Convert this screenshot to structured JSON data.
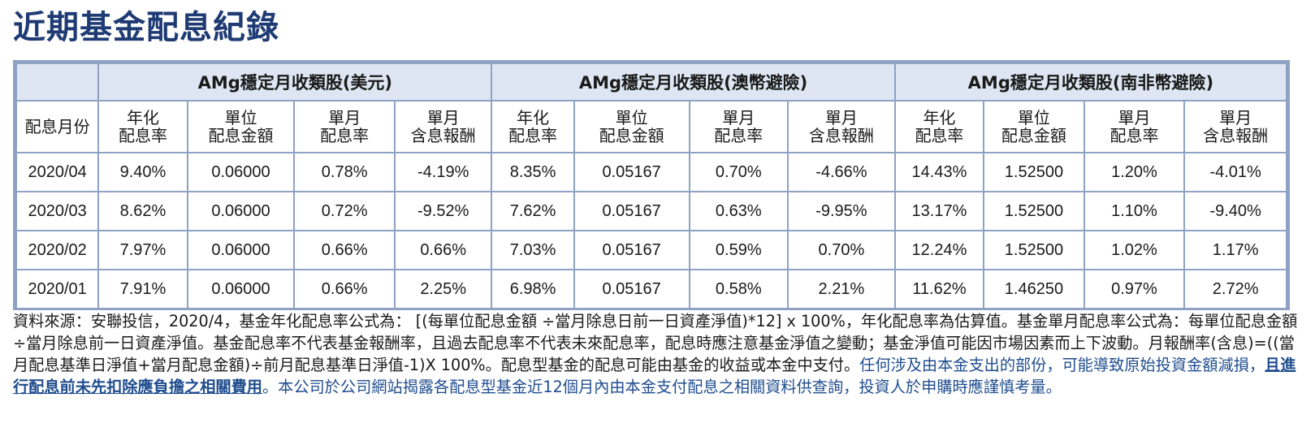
{
  "page": {
    "title": "近期基金配息紀錄"
  },
  "table": {
    "month_header": "配息月份",
    "groups": [
      {
        "name": "AMg穩定月收類股(美元)"
      },
      {
        "name": "AMg穩定月收類股(澳幣避險)"
      },
      {
        "name": "AMg穩定月收類股(南非幣避險)"
      }
    ],
    "column_headers": [
      {
        "line1": "年化",
        "line2": "配息率"
      },
      {
        "line1": "單位",
        "line2": "配息金額"
      },
      {
        "line1": "單月",
        "line2": "配息率"
      },
      {
        "line1": "單月",
        "line2": "含息報酬"
      }
    ],
    "rows": [
      {
        "month": "2020/04",
        "cells": [
          "9.40%",
          "0.06000",
          "0.78%",
          "-4.19%",
          "8.35%",
          "0.05167",
          "0.70%",
          "-4.66%",
          "14.43%",
          "1.52500",
          "1.20%",
          "-4.01%"
        ]
      },
      {
        "month": "2020/03",
        "cells": [
          "8.62%",
          "0.06000",
          "0.72%",
          "-9.52%",
          "7.62%",
          "0.05167",
          "0.63%",
          "-9.95%",
          "13.17%",
          "1.52500",
          "1.10%",
          "-9.40%"
        ]
      },
      {
        "month": "2020/02",
        "cells": [
          "7.97%",
          "0.06000",
          "0.66%",
          "0.66%",
          "7.03%",
          "0.05167",
          "0.59%",
          "0.70%",
          "12.24%",
          "1.52500",
          "1.02%",
          "1.17%"
        ]
      },
      {
        "month": "2020/01",
        "cells": [
          "7.91%",
          "0.06000",
          "0.66%",
          "2.25%",
          "6.98%",
          "0.05167",
          "0.58%",
          "2.21%",
          "11.62%",
          "1.46250",
          "0.97%",
          "2.72%"
        ]
      }
    ]
  },
  "footnote": {
    "part1": "資料來源：安聯投信，2020/4，基金年化配息率公式為： [(每單位配息金額 ÷當月除息日前一日資產淨值)*12] x 100%，年化配息率為估算值。基金單月配息率公式為：每單位配息金額÷當月除息前一日資產淨值。基金配息率不代表基金報酬率，且過去配息率不代表未來配息率，配息時應注意基金淨值之變動；基金淨值可能因市場因素而上下波動。月報酬率(含息)=((當月配息基準日淨值+當月配息金額)÷前月配息基準日淨值-1)X 100%。配息型基金的配息可能由基金的收益或本金中支付。",
    "part2": "任何涉及由本金支出的部份，可能導致原始投資金額減損，",
    "part3": "且進行配息前未先扣除應負擔之相關費用",
    "part4": "。本公司於公司網站揭露各配息型基金近12個月內由本金支付配息之相關資料供查詢，投資人於申購時應謹慎考量。"
  },
  "colors": {
    "title": "#1f3b73",
    "header_fill": "#dde6f2",
    "border": "#8ea2c4",
    "emphasis": "#1f4d8f"
  }
}
